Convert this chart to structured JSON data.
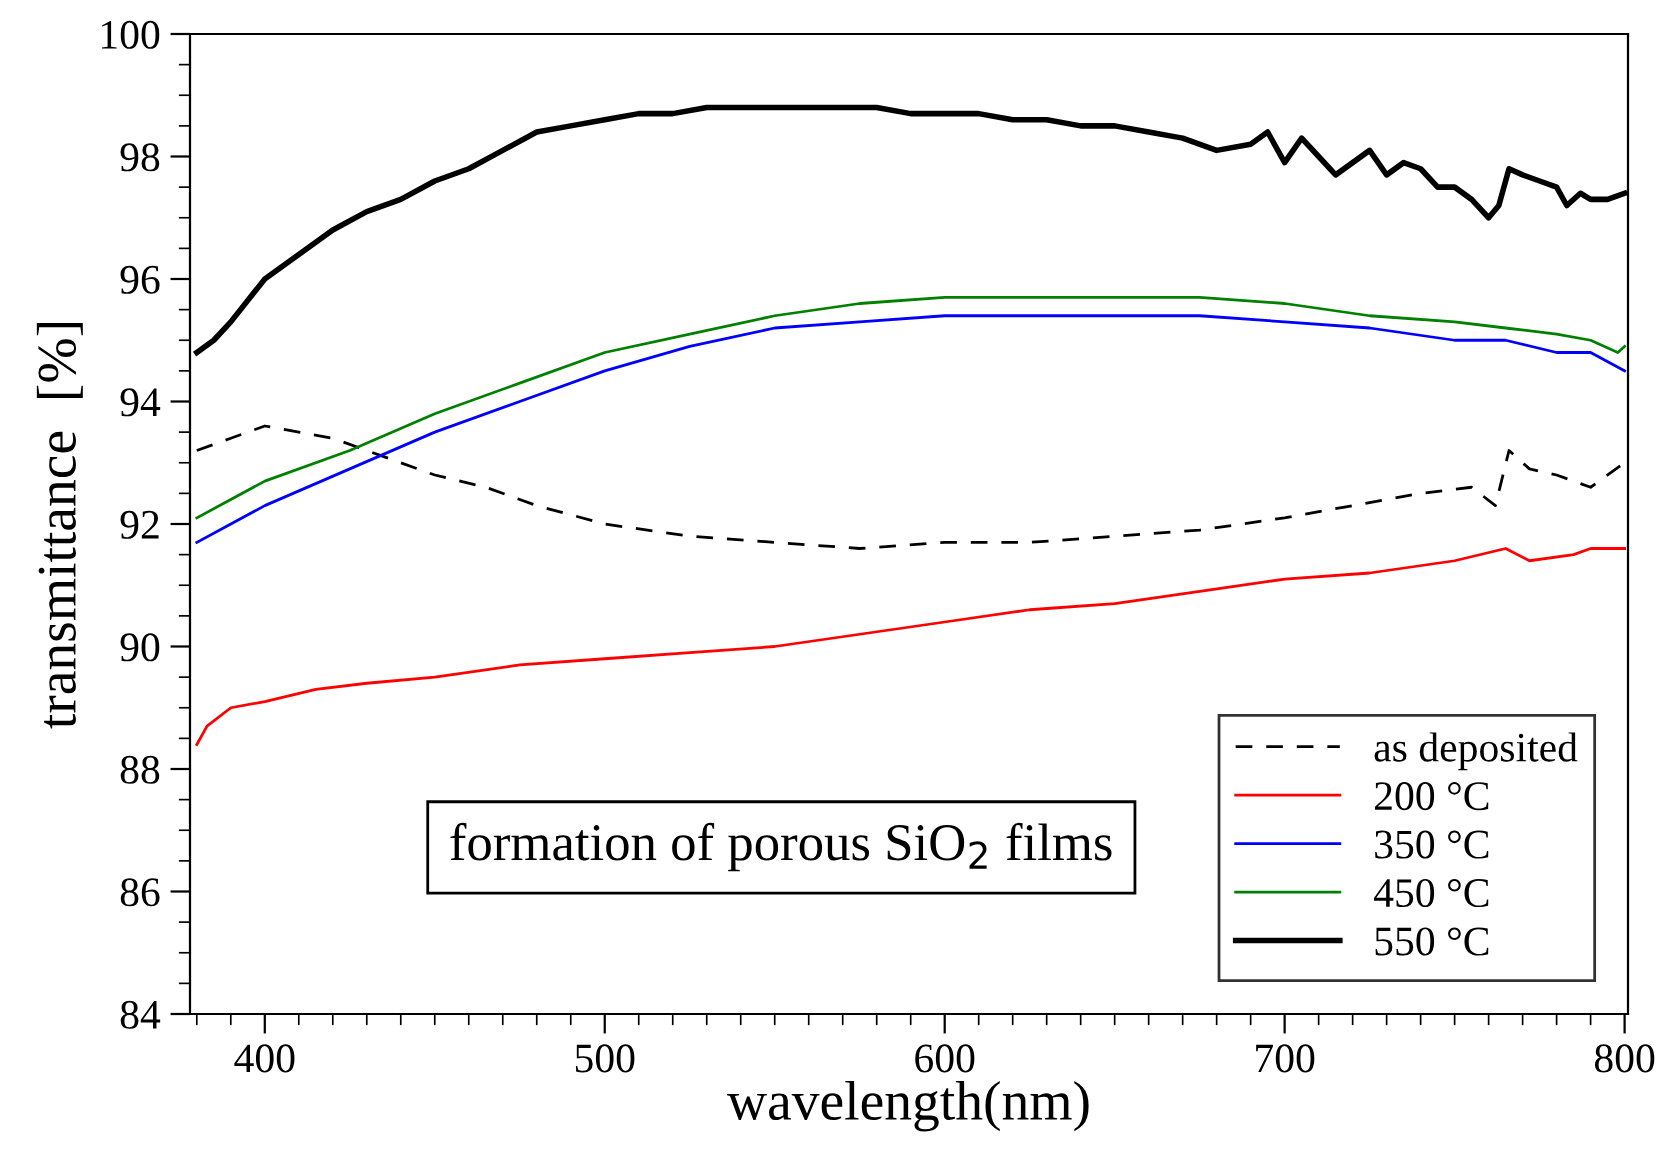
{
  "chart_data": {
    "type": "line",
    "xlabel": "wavelength(nm)",
    "ylabel": "transmittance  [%]",
    "xlim": [
      378,
      801
    ],
    "ylim": [
      84,
      100
    ],
    "xticks": [
      400,
      500,
      600,
      700,
      800
    ],
    "yticks": [
      84,
      86,
      88,
      90,
      92,
      94,
      96,
      98,
      100
    ],
    "grid": false,
    "legend": "bottom right",
    "marker": "none",
    "annotations": [
      "formation of porous SiO$_{2}$ films"
    ],
    "series": [
      {
        "name": "as deposited",
        "color": "#000000",
        "line_style": "dashed",
        "x": [
          380,
          390,
          400,
          410,
          420,
          435,
          450,
          465,
          480,
          500,
          525,
          550,
          575,
          600,
          625,
          650,
          675,
          700,
          720,
          740,
          755,
          762,
          766,
          772,
          780,
          790,
          800
        ],
        "values": [
          93.2,
          93.4,
          93.6,
          93.5,
          93.4,
          93.1,
          92.8,
          92.6,
          92.3,
          92.0,
          91.8,
          91.7,
          91.6,
          91.7,
          91.7,
          91.8,
          91.9,
          92.1,
          92.3,
          92.5,
          92.6,
          92.3,
          93.2,
          92.9,
          92.8,
          92.6,
          93.0
        ]
      },
      {
        "name": "200 °C",
        "color": "#ff0000",
        "x": [
          380,
          383,
          390,
          400,
          415,
          430,
          450,
          475,
          500,
          525,
          550,
          575,
          600,
          625,
          650,
          675,
          700,
          725,
          750,
          765,
          772,
          785,
          790,
          800
        ],
        "values": [
          88.4,
          88.7,
          89.0,
          89.1,
          89.3,
          89.4,
          89.5,
          89.7,
          89.8,
          89.9,
          90.0,
          90.2,
          90.4,
          90.6,
          90.7,
          90.9,
          91.1,
          91.2,
          91.4,
          91.6,
          91.4,
          91.5,
          91.6,
          91.6
        ]
      },
      {
        "name": "350 °C",
        "color": "#0000ff",
        "x": [
          380,
          390,
          400,
          425,
          450,
          475,
          500,
          525,
          550,
          575,
          600,
          625,
          650,
          675,
          700,
          725,
          750,
          765,
          780,
          790,
          800
        ],
        "values": [
          91.7,
          92.0,
          92.3,
          92.9,
          93.5,
          94.0,
          94.5,
          94.9,
          95.2,
          95.3,
          95.4,
          95.4,
          95.4,
          95.4,
          95.3,
          95.2,
          95.0,
          95.0,
          94.8,
          94.8,
          94.5
        ]
      },
      {
        "name": "450 °C",
        "color": "#008000",
        "x": [
          380,
          390,
          400,
          425,
          450,
          475,
          500,
          525,
          550,
          575,
          600,
          625,
          650,
          675,
          700,
          725,
          750,
          765,
          780,
          790,
          798,
          800
        ],
        "values": [
          92.1,
          92.4,
          92.7,
          93.2,
          93.8,
          94.3,
          94.8,
          95.1,
          95.4,
          95.6,
          95.7,
          95.7,
          95.7,
          95.7,
          95.6,
          95.4,
          95.3,
          95.2,
          95.1,
          95.0,
          94.8,
          94.9
        ]
      },
      {
        "name": "550 °C",
        "color": "#000000",
        "x": [
          380,
          385,
          390,
          400,
          410,
          420,
          430,
          440,
          450,
          460,
          470,
          480,
          490,
          500,
          510,
          520,
          530,
          540,
          550,
          560,
          570,
          580,
          590,
          600,
          610,
          620,
          630,
          640,
          650,
          660,
          670,
          680,
          690,
          695,
          700,
          705,
          710,
          715,
          720,
          725,
          730,
          735,
          740,
          745,
          750,
          755,
          760,
          763,
          766,
          770,
          775,
          780,
          783,
          787,
          790,
          795,
          800
        ],
        "values": [
          94.8,
          95.0,
          95.3,
          96.0,
          96.4,
          96.8,
          97.1,
          97.3,
          97.6,
          97.8,
          98.1,
          98.4,
          98.5,
          98.6,
          98.7,
          98.7,
          98.8,
          98.8,
          98.8,
          98.8,
          98.8,
          98.8,
          98.7,
          98.7,
          98.7,
          98.6,
          98.6,
          98.5,
          98.5,
          98.4,
          98.3,
          98.1,
          98.2,
          98.4,
          97.9,
          98.3,
          98.0,
          97.7,
          97.9,
          98.1,
          97.7,
          97.9,
          97.8,
          97.5,
          97.5,
          97.3,
          97.0,
          97.2,
          97.8,
          97.7,
          97.6,
          97.5,
          97.2,
          97.4,
          97.3,
          97.3,
          97.4
        ]
      }
    ]
  }
}
